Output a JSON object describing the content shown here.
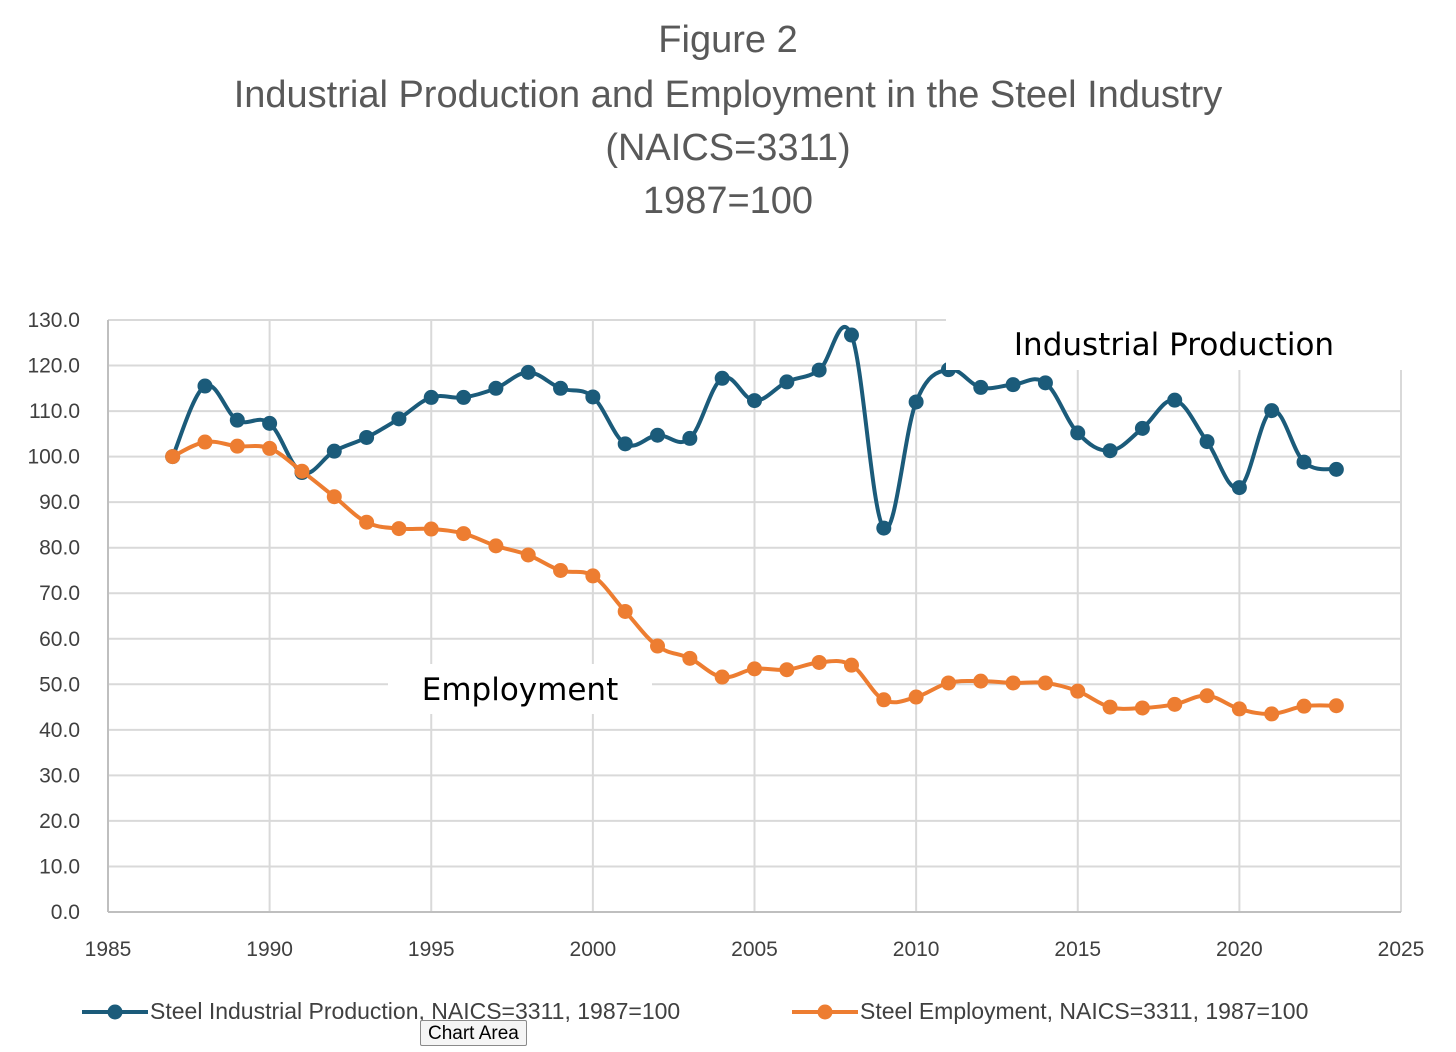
{
  "chart_data": {
    "type": "line",
    "title": [
      "Figure 2",
      "Industrial Production and Employment in the Steel Industry",
      "(NAICS=3311)",
      "1987=100"
    ],
    "xlabel": "",
    "ylabel": "",
    "xlim": [
      1985,
      2025
    ],
    "ylim": [
      0,
      130
    ],
    "x_ticks": [
      "1985",
      "1990",
      "1995",
      "2000",
      "2005",
      "2010",
      "2015",
      "2020",
      "2025"
    ],
    "y_ticks": [
      "0.0",
      "10.0",
      "20.0",
      "30.0",
      "40.0",
      "50.0",
      "60.0",
      "70.0",
      "80.0",
      "90.0",
      "100.0",
      "110.0",
      "120.0",
      "130.0"
    ],
    "grid": true,
    "legend_position": "bottom",
    "x": [
      1987,
      1988,
      1989,
      1990,
      1991,
      1992,
      1993,
      1994,
      1995,
      1996,
      1997,
      1998,
      1999,
      2000,
      2001,
      2002,
      2003,
      2004,
      2005,
      2006,
      2007,
      2008,
      2009,
      2010,
      2011,
      2012,
      2013,
      2014,
      2015,
      2016,
      2017,
      2018,
      2019,
      2020,
      2021,
      2022,
      2023
    ],
    "series": [
      {
        "name": "Steel Industrial Production, NAICS=3311, 1987=100",
        "color": "#1b5b7a",
        "values": [
          100.0,
          115.5,
          108.0,
          107.3,
          96.5,
          101.2,
          104.2,
          108.3,
          113.0,
          113.0,
          115.0,
          118.5,
          115.0,
          113.1,
          102.8,
          104.7,
          104.0,
          117.2,
          112.3,
          116.4,
          119.0,
          126.7,
          84.3,
          112.0,
          119.1,
          115.2,
          115.8,
          116.2,
          105.2,
          101.3,
          106.2,
          112.4,
          103.3,
          93.2,
          110.1,
          98.8,
          97.2
        ]
      },
      {
        "name": "Steel Employment, NAICS=3311, 1987=100",
        "color": "#ed7d31",
        "values": [
          100.0,
          103.2,
          102.3,
          101.8,
          96.8,
          91.2,
          85.6,
          84.2,
          84.1,
          83.1,
          80.4,
          78.4,
          75.0,
          73.8,
          66.0,
          58.4,
          55.7,
          51.6,
          53.4,
          53.2,
          54.8,
          54.2,
          46.6,
          47.2,
          50.3,
          50.7,
          50.3,
          50.3,
          48.5,
          45.0,
          44.8,
          45.6,
          47.5,
          44.6,
          43.5,
          45.2,
          45.3
        ]
      }
    ],
    "annotations": [
      {
        "text": "Industrial Production",
        "x": 2015,
        "y": 124
      },
      {
        "text": "Employment",
        "x": 1998.5,
        "y": 49
      }
    ]
  },
  "tooltip": "Chart Area"
}
